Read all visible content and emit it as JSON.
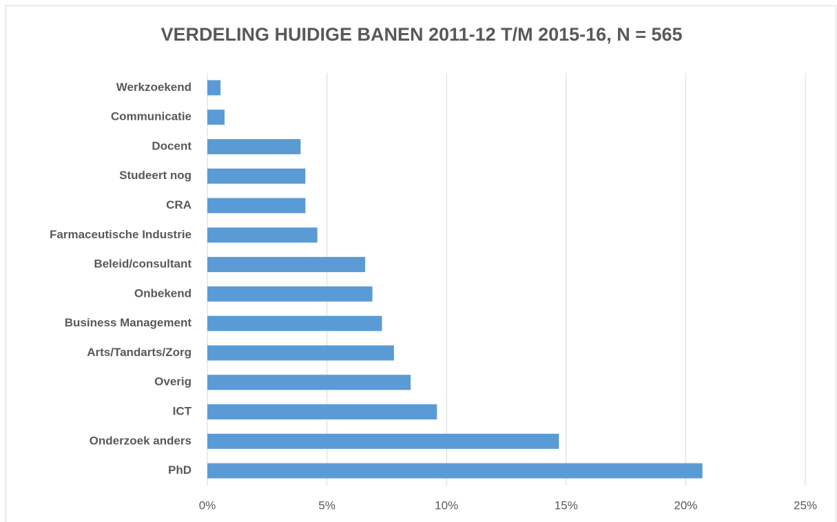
{
  "chart_data": {
    "type": "bar",
    "orientation": "horizontal",
    "title": "VERDELING HUIDIGE BANEN 2011-12 T/M 2015-16, N = 565",
    "categories": [
      "Werkzoekend",
      "Communicatie",
      "Docent",
      "Studeert nog",
      "CRA",
      "Farmaceutische Industrie",
      "Beleid/consultant",
      "Onbekend",
      "Business Management",
      "Arts/Tandarts/Zorg",
      "Overig",
      "ICT",
      "Onderzoek anders",
      "PhD"
    ],
    "values": [
      0.55,
      0.72,
      3.9,
      4.1,
      4.1,
      4.6,
      6.6,
      6.9,
      7.3,
      7.8,
      8.5,
      9.6,
      14.7,
      20.7
    ],
    "color": "#5b9bd5",
    "xlim": [
      0,
      25
    ],
    "xticks": [
      {
        "value": 0,
        "label": "0%"
      },
      {
        "value": 5,
        "label": "5%"
      },
      {
        "value": 10,
        "label": "10%"
      },
      {
        "value": 15,
        "label": "15%"
      },
      {
        "value": 20,
        "label": "20%"
      },
      {
        "value": 25,
        "label": "25%"
      }
    ],
    "grid": true
  }
}
